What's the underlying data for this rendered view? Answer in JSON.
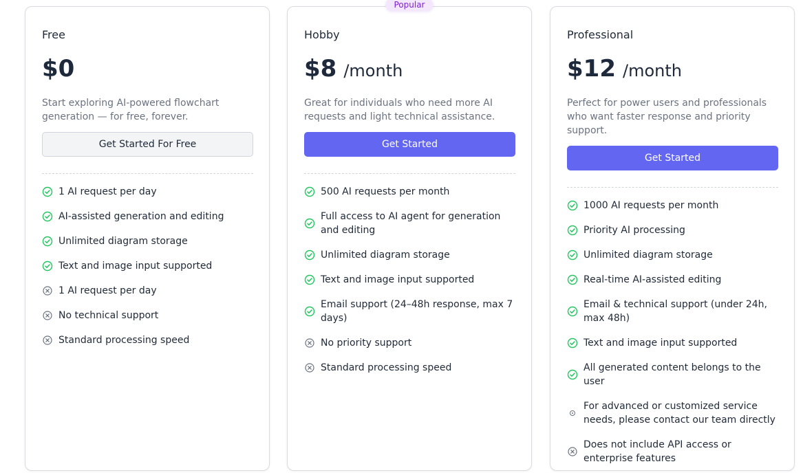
{
  "colors": {
    "accent": "#6366f1",
    "check": "#22c55e",
    "cross": "#6b7280",
    "badge_bg": "#f3e8ff",
    "badge_text": "#7e22ce"
  },
  "plans": [
    {
      "title": "Free",
      "price": "$0",
      "period": "",
      "description": "Start exploring AI-powered flowchart generation — for free, forever.",
      "button": "Get Started For Free",
      "button_style": "secondary",
      "badge": "",
      "features": [
        {
          "text": "1 AI request per day",
          "icon": "check-circle-icon"
        },
        {
          "text": "AI-assisted generation and editing",
          "icon": "check-circle-icon"
        },
        {
          "text": "Unlimited diagram storage",
          "icon": "check-circle-icon"
        },
        {
          "text": "Text and image input supported",
          "icon": "check-circle-icon"
        },
        {
          "text": "1 AI request per day",
          "icon": "x-circle-icon"
        },
        {
          "text": "No technical support",
          "icon": "x-circle-icon"
        },
        {
          "text": "Standard processing speed",
          "icon": "x-circle-icon"
        }
      ]
    },
    {
      "title": "Hobby",
      "price": "$8",
      "period": "/month",
      "description": "Great for individuals who need more AI requests and light technical assistance.",
      "button": "Get Started",
      "button_style": "primary",
      "badge": "Popular",
      "features": [
        {
          "text": "500 AI requests per month",
          "icon": "check-circle-icon"
        },
        {
          "text": "Full access to AI agent for generation and editing",
          "icon": "check-circle-icon"
        },
        {
          "text": "Unlimited diagram storage",
          "icon": "check-circle-icon"
        },
        {
          "text": "Text and image input supported",
          "icon": "check-circle-icon"
        },
        {
          "text": "Email support (24–48h response, max 7 days)",
          "icon": "check-circle-icon"
        },
        {
          "text": "No priority support",
          "icon": "x-circle-icon"
        },
        {
          "text": "Standard processing speed",
          "icon": "x-circle-icon"
        }
      ]
    },
    {
      "title": "Professional",
      "price": "$12",
      "period": "/month",
      "description": "Perfect for power users and professionals who want faster response and priority support.",
      "button": "Get Started",
      "button_style": "primary",
      "badge": "",
      "features": [
        {
          "text": "1000 AI requests per month",
          "icon": "check-circle-icon"
        },
        {
          "text": "Priority AI processing",
          "icon": "check-circle-icon"
        },
        {
          "text": "Unlimited diagram storage",
          "icon": "check-circle-icon"
        },
        {
          "text": "Real-time AI-assisted editing",
          "icon": "check-circle-icon"
        },
        {
          "text": "Email & technical support (under 24h, max 48h)",
          "icon": "check-circle-icon"
        },
        {
          "text": "Text and image input supported",
          "icon": "check-circle-icon"
        },
        {
          "text": "All generated content belongs to the user",
          "icon": "check-circle-icon"
        },
        {
          "text": "For advanced or customized service needs, please contact our team directly",
          "icon": "dot-circle-icon"
        },
        {
          "text": "Does not include API access or enterprise features",
          "icon": "x-circle-icon"
        }
      ]
    }
  ]
}
